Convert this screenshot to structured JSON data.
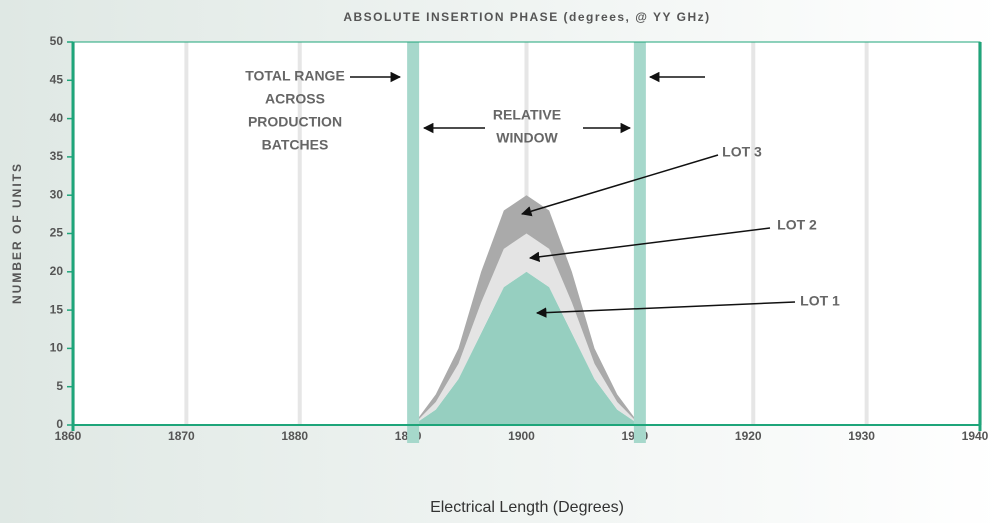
{
  "chart_data": {
    "type": "area",
    "title": "ABSOLUTE INSERTION PHASE (degrees, @ YY GHz)",
    "x_label": "Electrical Length (Degrees)",
    "y_label": "NUMBER OF UNITS",
    "x": [
      1890,
      1892,
      1894,
      1896,
      1898,
      1900,
      1902,
      1904,
      1906,
      1908,
      1910
    ],
    "series": [
      {
        "name": "LOT 1",
        "color": "#96cfc0",
        "values": [
          0,
          2,
          6,
          12,
          18,
          20,
          18,
          12,
          6,
          2,
          0
        ]
      },
      {
        "name": "LOT 2",
        "color": "#e4e4e4",
        "values": [
          0,
          1,
          2,
          4,
          5,
          5,
          5,
          4,
          2,
          1,
          0
        ]
      },
      {
        "name": "LOT 3",
        "color": "#aaaaaa",
        "values": [
          0,
          1,
          2,
          4,
          5,
          5,
          5,
          4,
          2,
          1,
          0
        ]
      }
    ],
    "stacked": true,
    "bands": [
      1890,
      1910
    ],
    "band_color": "#a6d8cb",
    "annotations": [
      [
        "TOTAL RANGE",
        "ACROSS",
        "PRODUCTION",
        "BATCHES"
      ],
      [
        "RELATIVE",
        "WINDOW"
      ]
    ],
    "xlim": [
      1860,
      1940
    ],
    "xticks": [
      1860,
      1870,
      1880,
      1890,
      1900,
      1910,
      1920,
      1930,
      1940
    ],
    "ylim": [
      0,
      50
    ],
    "yticks": [
      0,
      5,
      10,
      15,
      20,
      25,
      30,
      35,
      40,
      45,
      50
    ],
    "grid": true
  }
}
